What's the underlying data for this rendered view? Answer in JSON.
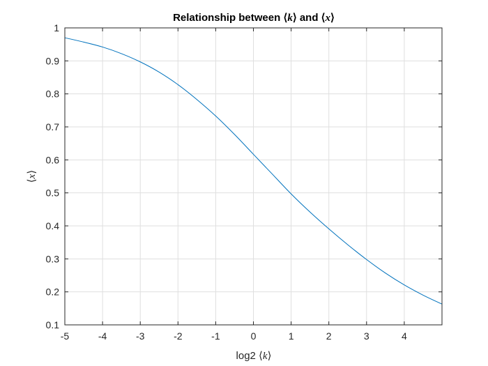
{
  "chart_data": {
    "type": "line",
    "title_prefix": "Relationship between ⟨",
    "title_k": "k",
    "title_mid": "⟩ and ⟨",
    "title_x": "x",
    "title_suffix": "⟩",
    "xlabel_prefix": "log2 ⟨",
    "xlabel_var": "k",
    "xlabel_suffix": "⟩",
    "ylabel_prefix": "⟨",
    "ylabel_var": "x",
    "ylabel_suffix": "⟩",
    "xlim": [
      -5,
      5
    ],
    "ylim": [
      0.1,
      1.0
    ],
    "xticks": [
      -5,
      -4,
      -3,
      -2,
      -1,
      0,
      1,
      2,
      3,
      4
    ],
    "yticks": [
      0.1,
      0.2,
      0.3,
      0.4,
      0.5,
      0.6,
      0.7,
      0.8,
      0.9,
      1.0
    ],
    "ytick_labels": [
      "0.1",
      "0.2",
      "0.3",
      "0.4",
      "0.5",
      "0.6",
      "0.7",
      "0.8",
      "0.9",
      "1"
    ],
    "grid": true,
    "series": [
      {
        "color": "#0072bd",
        "x": [
          -5,
          -4.5,
          -4,
          -3.5,
          -3,
          -2.5,
          -2,
          -1.5,
          -1,
          -0.5,
          0,
          0.5,
          1,
          1.5,
          2,
          2.5,
          3,
          3.5,
          4,
          4.5,
          5
        ],
        "y": [
          0.97,
          0.957,
          0.942,
          0.922,
          0.897,
          0.866,
          0.828,
          0.783,
          0.733,
          0.677,
          0.617,
          0.557,
          0.497,
          0.442,
          0.391,
          0.343,
          0.298,
          0.257,
          0.221,
          0.19,
          0.163
        ]
      }
    ]
  }
}
